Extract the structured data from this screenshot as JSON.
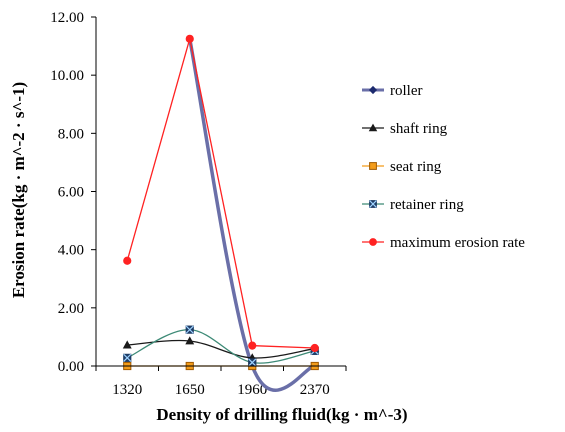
{
  "chart_data": {
    "type": "line",
    "title": "",
    "xlabel": "Density of drilling fluid(kg · m^-3)",
    "ylabel": "Erosion rate(kg · m^-2 · s^-1)",
    "categories": [
      "1320",
      "1650",
      "1960",
      "2370"
    ],
    "y_tick_labels": [
      "0.00",
      "2.00",
      "4.00",
      "6.00",
      "8.00",
      "10.00",
      "12.00"
    ],
    "ylim": [
      0,
      12
    ],
    "grid": false,
    "legend_position": "right",
    "series": [
      {
        "name": "roller",
        "values": [
          null,
          11.25,
          0.0,
          0.0
        ],
        "color": "#6a6fa8",
        "marker": "diamond",
        "smooth": true
      },
      {
        "name": "shaft ring",
        "values": [
          0.72,
          0.86,
          0.28,
          0.6
        ],
        "color": "#1a1a1a",
        "marker": "triangle",
        "smooth": true
      },
      {
        "name": "seat ring",
        "values": [
          0.0,
          0.0,
          0.0,
          0.0
        ],
        "color": "#f39c1a",
        "marker": "square",
        "smooth": true
      },
      {
        "name": "retainer ring",
        "values": [
          0.28,
          1.25,
          0.12,
          0.52
        ],
        "color": "#3d8a76",
        "marker": "x",
        "smooth": true
      },
      {
        "name": "maximum erosion rate",
        "values": [
          3.62,
          11.25,
          0.7,
          0.62
        ],
        "color": "#ff2222",
        "marker": "circle",
        "smooth": false
      }
    ]
  }
}
